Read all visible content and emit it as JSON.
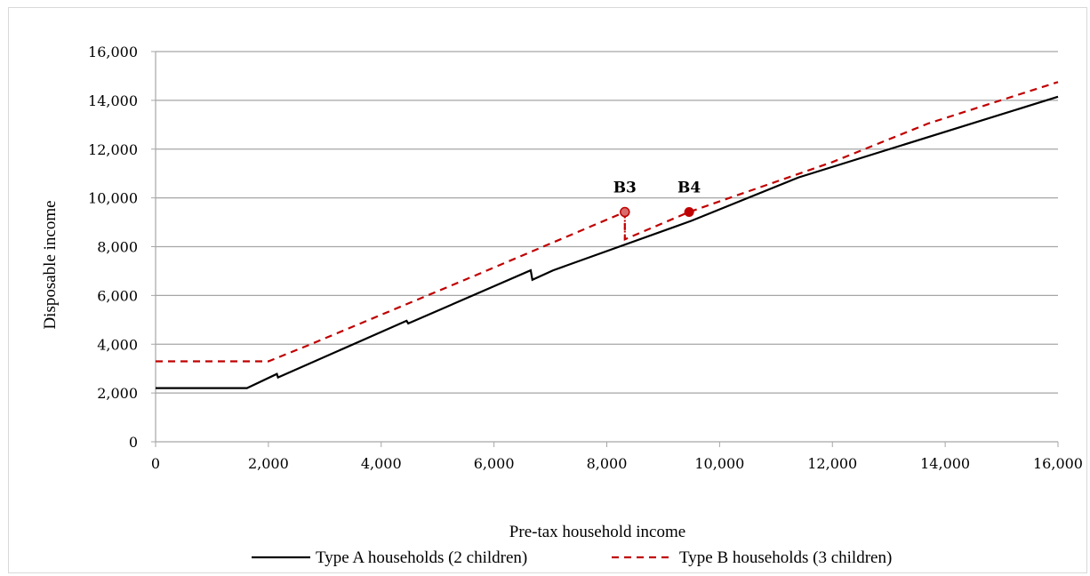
{
  "top_title": "                                                     ",
  "chart_data": {
    "type": "line",
    "xlabel": "Pre-tax household income",
    "ylabel": "Disposable income",
    "xlim": [
      0,
      16000
    ],
    "ylim": [
      0,
      16000
    ],
    "x_ticks": [
      "0",
      "2,000",
      "4,000",
      "6,000",
      "8,000",
      "10,000",
      "12,000",
      "14,000",
      "16,000"
    ],
    "y_ticks": [
      "0",
      "2,000",
      "4,000",
      "6,000",
      "8,000",
      "10,000",
      "12,000",
      "14,000",
      "16,000"
    ],
    "grid": "horizontal",
    "legend_position": "bottom",
    "series": [
      {
        "name": "Type A households (2 children)",
        "color": "#000000",
        "style": "solid",
        "points": [
          [
            0,
            2200
          ],
          [
            1620,
            2200
          ],
          [
            2150,
            2780
          ],
          [
            2170,
            2640
          ],
          [
            4450,
            4960
          ],
          [
            4480,
            4850
          ],
          [
            6650,
            7030
          ],
          [
            6680,
            6640
          ],
          [
            7050,
            7030
          ],
          [
            9500,
            9060
          ],
          [
            11400,
            10840
          ],
          [
            16000,
            14150
          ]
        ]
      },
      {
        "name": "Type B households (3 children)",
        "color": "#c00000",
        "style": "dashed",
        "points": [
          [
            0,
            3300
          ],
          [
            2000,
            3300
          ],
          [
            2700,
            3950
          ],
          [
            5650,
            6800
          ],
          [
            8320,
            9420
          ],
          [
            8320,
            8300
          ],
          [
            9460,
            9420
          ],
          [
            12000,
            11470
          ],
          [
            13700,
            13050
          ],
          [
            16000,
            14750
          ]
        ]
      }
    ],
    "annotations": [
      {
        "label": "B3",
        "x": 8320,
        "y": 9420,
        "drop_to": 8300,
        "marker": "circle-outline"
      },
      {
        "label": "B4",
        "x": 9460,
        "y": 9420,
        "marker": "circle-filled"
      }
    ]
  }
}
